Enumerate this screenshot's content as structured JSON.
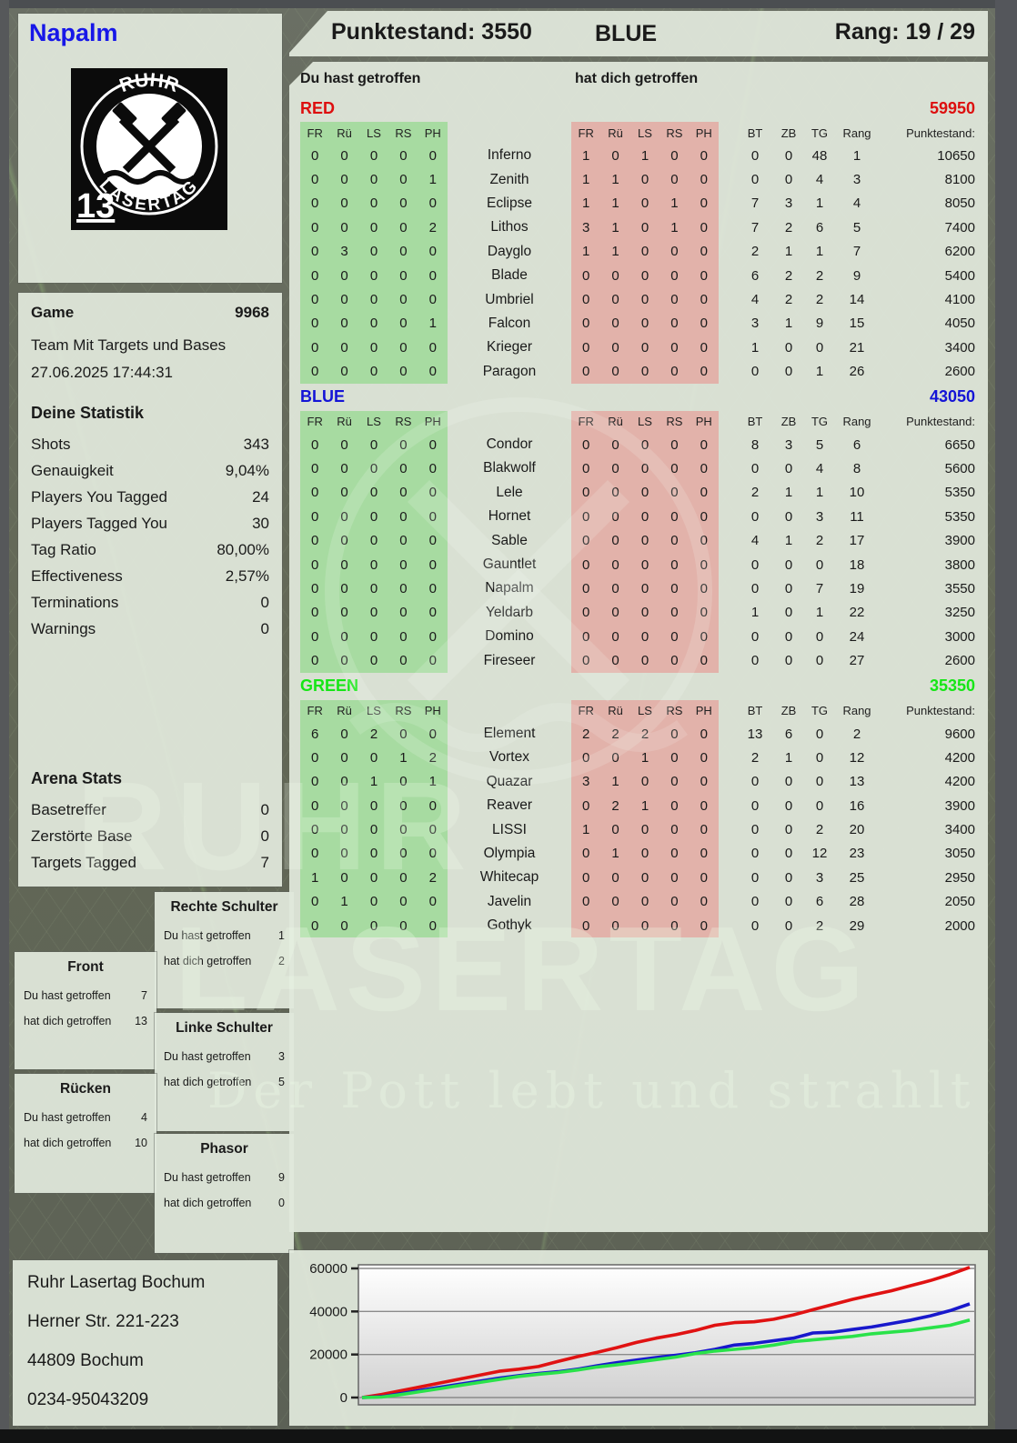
{
  "header": {
    "points_label": "Punktestand: 3550",
    "team": "BLUE",
    "rank_label": "Rang: 19 / 29"
  },
  "player": {
    "name": "Napalm"
  },
  "logo": {
    "arc_top": "RUHR",
    "arc_bottom": "LASERTAG",
    "pack_number": "13"
  },
  "section_labels": {
    "you_hit": "Du hast getroffen",
    "hit_you": "hat dich getroffen"
  },
  "columns": {
    "hit_group": [
      "FR",
      "Rü",
      "LS",
      "RS",
      "PH"
    ],
    "stats": [
      "BT",
      "ZB",
      "TG",
      "Rang"
    ],
    "points_header": "Punktestand:"
  },
  "teams": [
    {
      "name": "RED",
      "color": "#dd0f0f",
      "total": "59950",
      "rows": [
        {
          "you": [
            0,
            0,
            0,
            0,
            0
          ],
          "name": "Inferno",
          "them": [
            1,
            0,
            1,
            0,
            0
          ],
          "stats": [
            0,
            0,
            48,
            1
          ],
          "points": "10650"
        },
        {
          "you": [
            0,
            0,
            0,
            0,
            1
          ],
          "name": "Zenith",
          "them": [
            1,
            1,
            0,
            0,
            0
          ],
          "stats": [
            0,
            0,
            4,
            3
          ],
          "points": "8100"
        },
        {
          "you": [
            0,
            0,
            0,
            0,
            0
          ],
          "name": "Eclipse",
          "them": [
            1,
            1,
            0,
            1,
            0
          ],
          "stats": [
            7,
            3,
            1,
            4
          ],
          "points": "8050"
        },
        {
          "you": [
            0,
            0,
            0,
            0,
            2
          ],
          "name": "Lithos",
          "them": [
            3,
            1,
            0,
            1,
            0
          ],
          "stats": [
            7,
            2,
            6,
            5
          ],
          "points": "7400"
        },
        {
          "you": [
            0,
            3,
            0,
            0,
            0
          ],
          "name": "Dayglo",
          "them": [
            1,
            1,
            0,
            0,
            0
          ],
          "stats": [
            2,
            1,
            1,
            7
          ],
          "points": "6200"
        },
        {
          "you": [
            0,
            0,
            0,
            0,
            0
          ],
          "name": "Blade",
          "them": [
            0,
            0,
            0,
            0,
            0
          ],
          "stats": [
            6,
            2,
            2,
            9
          ],
          "points": "5400"
        },
        {
          "you": [
            0,
            0,
            0,
            0,
            0
          ],
          "name": "Umbriel",
          "them": [
            0,
            0,
            0,
            0,
            0
          ],
          "stats": [
            4,
            2,
            2,
            14
          ],
          "points": "4100"
        },
        {
          "you": [
            0,
            0,
            0,
            0,
            1
          ],
          "name": "Falcon",
          "them": [
            0,
            0,
            0,
            0,
            0
          ],
          "stats": [
            3,
            1,
            9,
            15
          ],
          "points": "4050"
        },
        {
          "you": [
            0,
            0,
            0,
            0,
            0
          ],
          "name": "Krieger",
          "them": [
            0,
            0,
            0,
            0,
            0
          ],
          "stats": [
            1,
            0,
            0,
            21
          ],
          "points": "3400"
        },
        {
          "you": [
            0,
            0,
            0,
            0,
            0
          ],
          "name": "Paragon",
          "them": [
            0,
            0,
            0,
            0,
            0
          ],
          "stats": [
            0,
            0,
            1,
            26
          ],
          "points": "2600"
        }
      ]
    },
    {
      "name": "BLUE",
      "color": "#1414d6",
      "total": "43050",
      "rows": [
        {
          "you": [
            0,
            0,
            0,
            0,
            0
          ],
          "name": "Condor",
          "them": [
            0,
            0,
            0,
            0,
            0
          ],
          "stats": [
            8,
            3,
            5,
            6
          ],
          "points": "6650"
        },
        {
          "you": [
            0,
            0,
            0,
            0,
            0
          ],
          "name": "Blakwolf",
          "them": [
            0,
            0,
            0,
            0,
            0
          ],
          "stats": [
            0,
            0,
            4,
            8
          ],
          "points": "5600"
        },
        {
          "you": [
            0,
            0,
            0,
            0,
            0
          ],
          "name": "Lele",
          "them": [
            0,
            0,
            0,
            0,
            0
          ],
          "stats": [
            2,
            1,
            1,
            10
          ],
          "points": "5350"
        },
        {
          "you": [
            0,
            0,
            0,
            0,
            0
          ],
          "name": "Hornet",
          "them": [
            0,
            0,
            0,
            0,
            0
          ],
          "stats": [
            0,
            0,
            3,
            11
          ],
          "points": "5350"
        },
        {
          "you": [
            0,
            0,
            0,
            0,
            0
          ],
          "name": "Sable",
          "them": [
            0,
            0,
            0,
            0,
            0
          ],
          "stats": [
            4,
            1,
            2,
            17
          ],
          "points": "3900"
        },
        {
          "you": [
            0,
            0,
            0,
            0,
            0
          ],
          "name": "Gauntlet",
          "them": [
            0,
            0,
            0,
            0,
            0
          ],
          "stats": [
            0,
            0,
            0,
            18
          ],
          "points": "3800"
        },
        {
          "you": [
            0,
            0,
            0,
            0,
            0
          ],
          "name": "Napalm",
          "them": [
            0,
            0,
            0,
            0,
            0
          ],
          "stats": [
            0,
            0,
            7,
            19
          ],
          "points": "3550"
        },
        {
          "you": [
            0,
            0,
            0,
            0,
            0
          ],
          "name": "Yeldarb",
          "them": [
            0,
            0,
            0,
            0,
            0
          ],
          "stats": [
            1,
            0,
            1,
            22
          ],
          "points": "3250"
        },
        {
          "you": [
            0,
            0,
            0,
            0,
            0
          ],
          "name": "Domino",
          "them": [
            0,
            0,
            0,
            0,
            0
          ],
          "stats": [
            0,
            0,
            0,
            24
          ],
          "points": "3000"
        },
        {
          "you": [
            0,
            0,
            0,
            0,
            0
          ],
          "name": "Fireseer",
          "them": [
            0,
            0,
            0,
            0,
            0
          ],
          "stats": [
            0,
            0,
            0,
            27
          ],
          "points": "2600"
        }
      ]
    },
    {
      "name": "GREEN",
      "color": "#16e616",
      "total": "35350",
      "rows": [
        {
          "you": [
            6,
            0,
            2,
            0,
            0
          ],
          "name": "Element",
          "them": [
            2,
            2,
            2,
            0,
            0
          ],
          "stats": [
            13,
            6,
            0,
            2
          ],
          "points": "9600"
        },
        {
          "you": [
            0,
            0,
            0,
            1,
            2
          ],
          "name": "Vortex",
          "them": [
            0,
            0,
            1,
            0,
            0
          ],
          "stats": [
            2,
            1,
            0,
            12
          ],
          "points": "4200"
        },
        {
          "you": [
            0,
            0,
            1,
            0,
            1
          ],
          "name": "Quazar",
          "them": [
            3,
            1,
            0,
            0,
            0
          ],
          "stats": [
            0,
            0,
            0,
            13
          ],
          "points": "4200"
        },
        {
          "you": [
            0,
            0,
            0,
            0,
            0
          ],
          "name": "Reaver",
          "them": [
            0,
            2,
            1,
            0,
            0
          ],
          "stats": [
            0,
            0,
            0,
            16
          ],
          "points": "3900"
        },
        {
          "you": [
            0,
            0,
            0,
            0,
            0
          ],
          "name": "LISSI",
          "them": [
            1,
            0,
            0,
            0,
            0
          ],
          "stats": [
            0,
            0,
            2,
            20
          ],
          "points": "3400"
        },
        {
          "you": [
            0,
            0,
            0,
            0,
            0
          ],
          "name": "Olympia",
          "them": [
            0,
            1,
            0,
            0,
            0
          ],
          "stats": [
            0,
            0,
            12,
            23
          ],
          "points": "3050"
        },
        {
          "you": [
            1,
            0,
            0,
            0,
            2
          ],
          "name": "Whitecap",
          "them": [
            0,
            0,
            0,
            0,
            0
          ],
          "stats": [
            0,
            0,
            3,
            25
          ],
          "points": "2950"
        },
        {
          "you": [
            0,
            1,
            0,
            0,
            0
          ],
          "name": "Javelin",
          "them": [
            0,
            0,
            0,
            0,
            0
          ],
          "stats": [
            0,
            0,
            6,
            28
          ],
          "points": "2050"
        },
        {
          "you": [
            0,
            0,
            0,
            0,
            0
          ],
          "name": "Gothyk",
          "them": [
            0,
            0,
            0,
            0,
            0
          ],
          "stats": [
            0,
            0,
            2,
            29
          ],
          "points": "2000"
        }
      ]
    }
  ],
  "game": {
    "label": "Game",
    "number": "9968",
    "mode": "Team Mit Targets und Bases",
    "datetime": "27.06.2025 17:44:31"
  },
  "stats": {
    "title": "Deine Statistik",
    "rows": [
      {
        "label": "Shots",
        "value": "343"
      },
      {
        "label": "Genauigkeit",
        "value": "9,04%"
      },
      {
        "label": "Players You Tagged",
        "value": "24"
      },
      {
        "label": "Players Tagged You",
        "value": "30"
      },
      {
        "label": "Tag Ratio",
        "value": "80,00%"
      },
      {
        "label": "Effectiveness",
        "value": "2,57%"
      },
      {
        "label": "Terminations",
        "value": "0"
      },
      {
        "label": "Warnings",
        "value": "0"
      }
    ]
  },
  "arena": {
    "title": "Arena Stats",
    "rows": [
      {
        "label": "Basetreffer",
        "value": "0"
      },
      {
        "label": "Zerstörte Base",
        "value": "0"
      },
      {
        "label": "Targets Tagged",
        "value": "7"
      }
    ]
  },
  "zone_labels": {
    "you": "Du hast getroffen",
    "them": "hat dich getroffen"
  },
  "zones": [
    {
      "title": "Rechte Schulter",
      "you": "1",
      "them": "2"
    },
    {
      "title": "Front",
      "you": "7",
      "them": "13"
    },
    {
      "title": "Linke Schulter",
      "you": "3",
      "them": "5"
    },
    {
      "title": "Rücken",
      "you": "4",
      "them": "10"
    },
    {
      "title": "Phasor",
      "you": "9",
      "them": "0"
    }
  ],
  "address": {
    "line1": "Ruhr Lasertag Bochum",
    "line2": "Herner Str. 221-223",
    "line3": "44809 Bochum",
    "line4": "0234-95043209"
  },
  "watermark": {
    "word1": "RUHR",
    "word2": "LASERTAG",
    "slogan": "Der Pott lebt und strahlt"
  },
  "chart_data": {
    "type": "line",
    "title": "",
    "xlabel": "",
    "ylabel": "",
    "yticks": [
      0,
      20000,
      40000,
      60000
    ],
    "ylim": [
      0,
      62000
    ],
    "grid": true,
    "legend": "none",
    "series": [
      {
        "name": "RED",
        "color": "#e01212",
        "values": [
          0,
          1400,
          3200,
          5000,
          6800,
          8600,
          10400,
          12200,
          13200,
          14400,
          16800,
          19000,
          21000,
          23200,
          25600,
          27600,
          29200,
          31200,
          33600,
          34800,
          35200,
          36400,
          38400,
          40800,
          43200,
          45600,
          47600,
          49600,
          52000,
          54400,
          57200,
          60500
        ]
      },
      {
        "name": "BLUE",
        "color": "#1818cc",
        "values": [
          0,
          400,
          1800,
          3400,
          4800,
          6200,
          7600,
          9000,
          10200,
          11200,
          12000,
          13200,
          14800,
          16200,
          17400,
          18600,
          19600,
          20800,
          22400,
          24400,
          25200,
          26400,
          27600,
          30000,
          30400,
          31600,
          32800,
          34400,
          36000,
          38000,
          40400,
          43500
        ]
      },
      {
        "name": "GREEN",
        "color": "#2ae24a",
        "values": [
          0,
          200,
          1400,
          2800,
          4200,
          5600,
          7000,
          8400,
          9800,
          10800,
          11600,
          12800,
          14200,
          15200,
          16400,
          17600,
          18800,
          20400,
          21600,
          22400,
          23200,
          24400,
          26000,
          26800,
          27600,
          28400,
          29600,
          30400,
          31200,
          32400,
          33600,
          36000
        ]
      }
    ]
  }
}
